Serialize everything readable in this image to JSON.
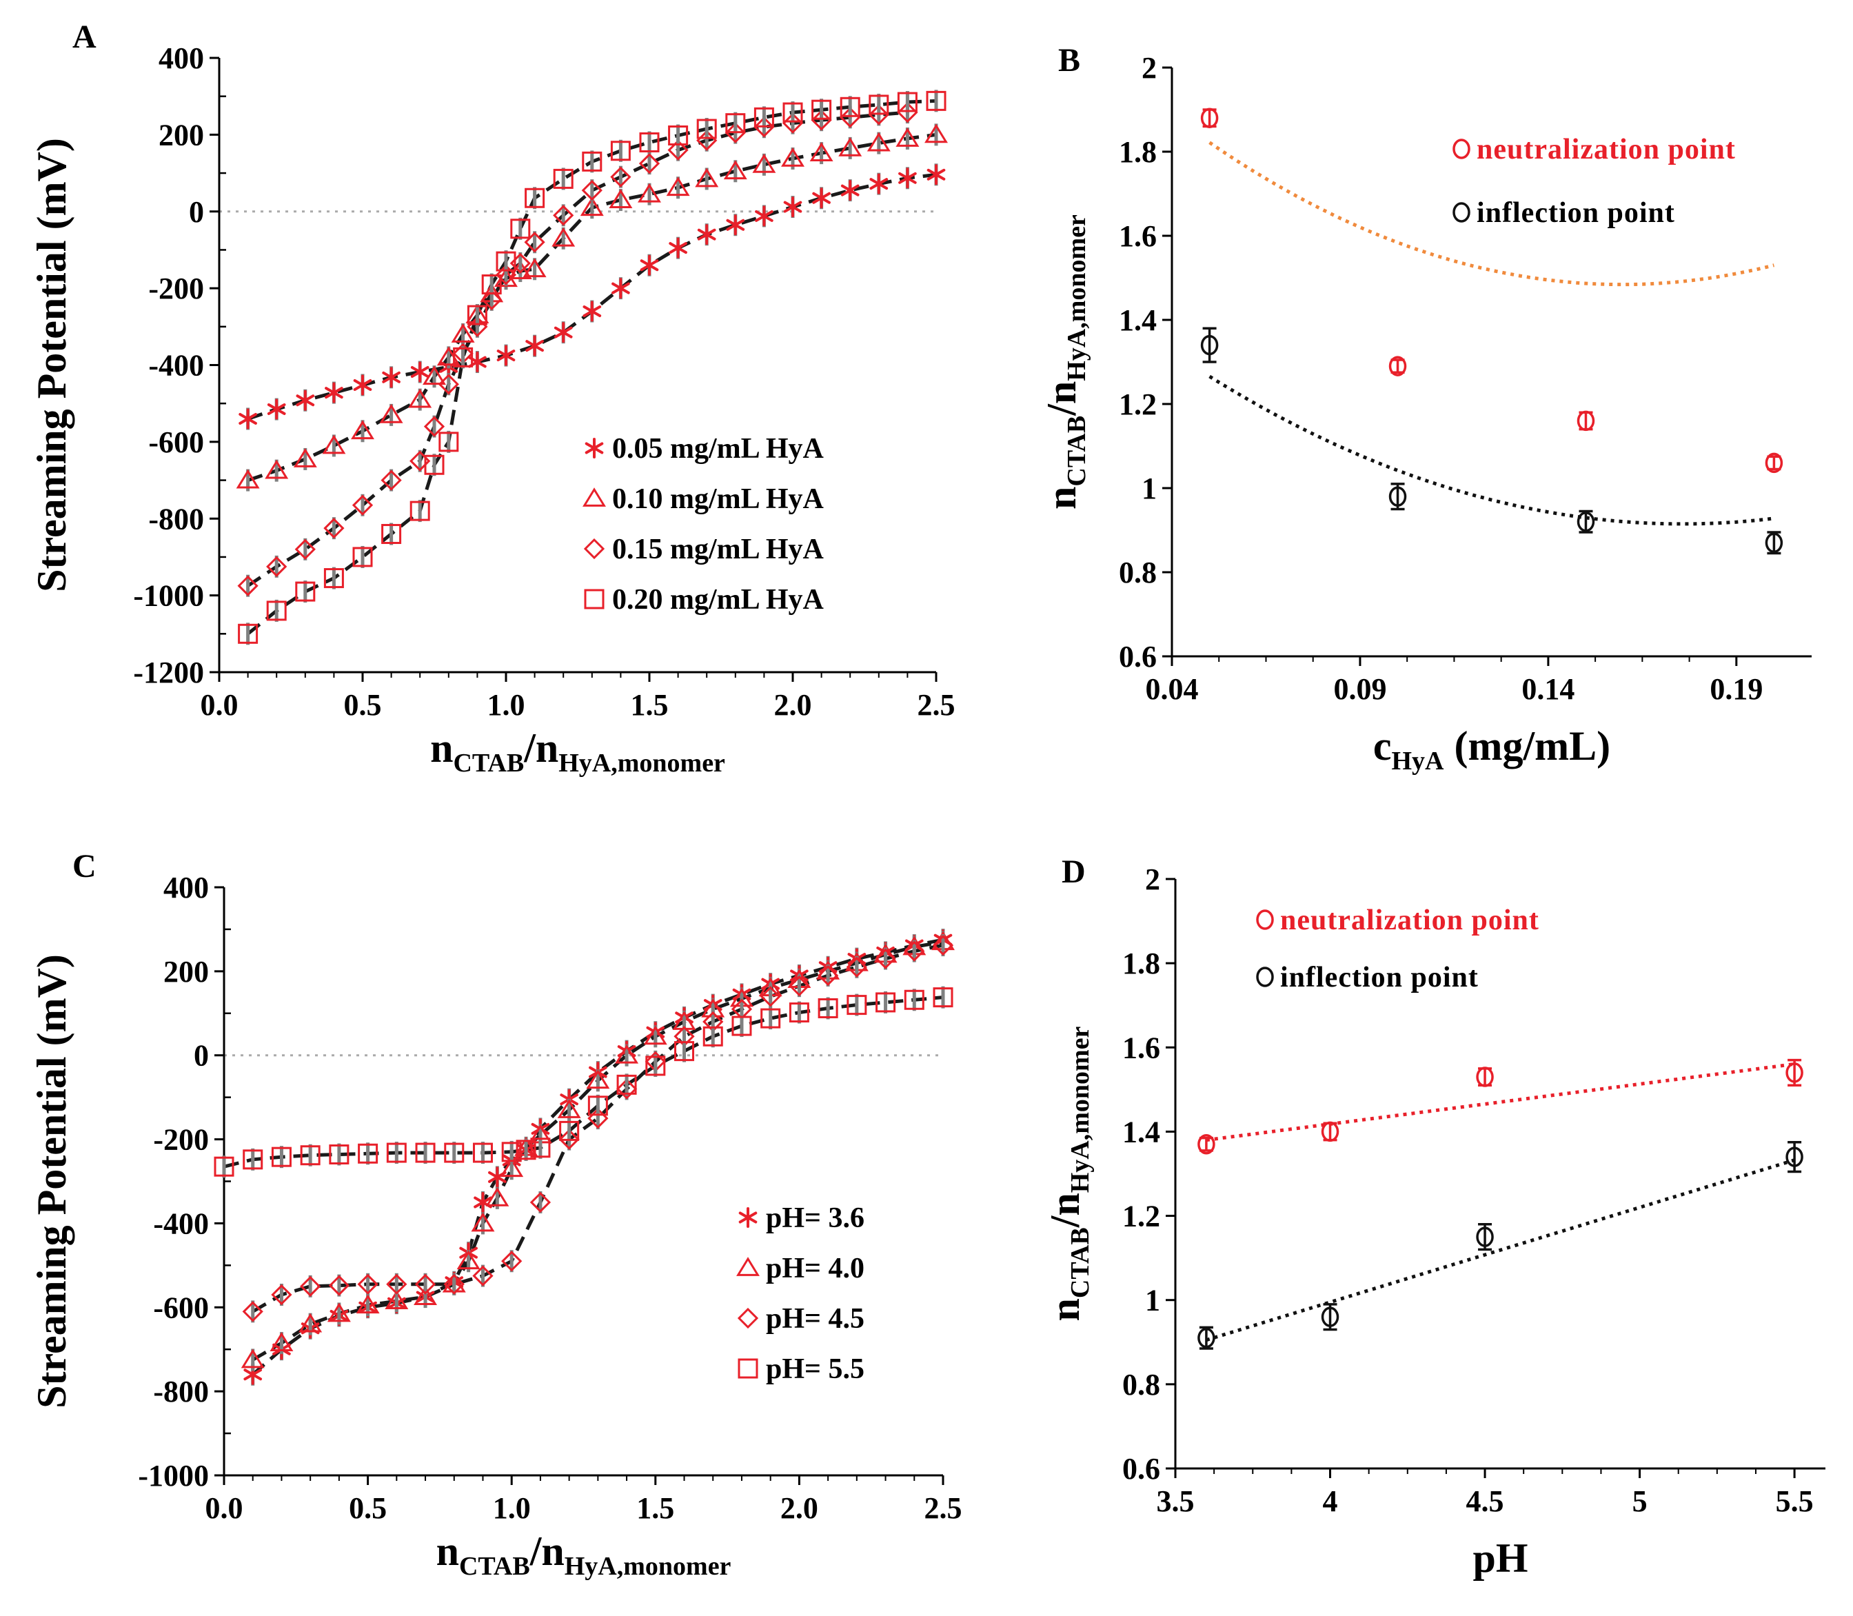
{
  "figure": {
    "panels": [
      "A",
      "B",
      "C",
      "D"
    ]
  },
  "colors": {
    "red": "#e8202a",
    "black": "#111111",
    "orange": "#f08a3c",
    "fit": "#1a1a1a",
    "zero": "#aaaaaa",
    "errbar": "#808080"
  },
  "chart_data": [
    {
      "panel": "A",
      "type": "scatter",
      "ylabel": "Streaming Potential (mV)",
      "xlabel_main": "n",
      "xlabel_sub1": "CTAB",
      "xlabel_mid": "/n",
      "xlabel_sub2": "HyA,monomer",
      "xlim": [
        0,
        2.5
      ],
      "ylim": [
        -1200,
        400
      ],
      "xticks": [
        "0.0",
        "0.5",
        "1.0",
        "1.5",
        "2.0",
        "2.5"
      ],
      "yticks": [
        "400",
        "200",
        "0",
        "-200",
        "-400",
        "-600",
        "-800",
        "-1000",
        "-1200"
      ],
      "series": [
        {
          "name": "0.05 mg/mL HyA",
          "marker": "asterisk",
          "x": [
            0.1,
            0.2,
            0.3,
            0.4,
            0.5,
            0.6,
            0.7,
            0.8,
            0.9,
            1.0,
            1.1,
            1.2,
            1.3,
            1.4,
            1.5,
            1.6,
            1.7,
            1.8,
            1.9,
            2.0,
            2.1,
            2.2,
            2.3,
            2.4,
            2.5
          ],
          "y": [
            -540,
            -515,
            -492,
            -472,
            -452,
            -432,
            -418,
            -405,
            -392,
            -375,
            -350,
            -315,
            -260,
            -200,
            -140,
            -95,
            -60,
            -35,
            -12,
            12,
            35,
            55,
            72,
            87,
            96
          ]
        },
        {
          "name": "0.10 mg/mL HyA",
          "marker": "triangle",
          "x": [
            0.1,
            0.2,
            0.3,
            0.4,
            0.5,
            0.6,
            0.7,
            0.75,
            0.8,
            0.85,
            0.9,
            0.95,
            1.0,
            1.05,
            1.1,
            1.2,
            1.3,
            1.4,
            1.5,
            1.6,
            1.7,
            1.8,
            1.9,
            2.0,
            2.1,
            2.2,
            2.3,
            2.4,
            2.5
          ],
          "y": [
            -700,
            -675,
            -645,
            -610,
            -572,
            -530,
            -490,
            -430,
            -380,
            -320,
            -270,
            -215,
            -175,
            -155,
            -150,
            -70,
            10,
            30,
            45,
            62,
            85,
            105,
            122,
            138,
            152,
            165,
            178,
            190,
            200
          ]
        },
        {
          "name": "0.15 mg/mL HyA",
          "marker": "diamond",
          "x": [
            0.1,
            0.2,
            0.3,
            0.4,
            0.5,
            0.6,
            0.7,
            0.75,
            0.8,
            0.85,
            0.9,
            0.95,
            1.0,
            1.05,
            1.1,
            1.2,
            1.3,
            1.4,
            1.5,
            1.6,
            1.7,
            1.8,
            1.9,
            2.0,
            2.1,
            2.2,
            2.3,
            2.4
          ],
          "y": [
            -975,
            -925,
            -880,
            -825,
            -765,
            -700,
            -650,
            -560,
            -450,
            -370,
            -300,
            -230,
            -165,
            -135,
            -80,
            -10,
            55,
            90,
            125,
            160,
            185,
            205,
            220,
            230,
            238,
            245,
            252,
            258
          ]
        },
        {
          "name": "0.20 mg/mL HyA",
          "marker": "square",
          "x": [
            0.1,
            0.2,
            0.3,
            0.4,
            0.5,
            0.6,
            0.7,
            0.75,
            0.8,
            0.85,
            0.9,
            0.95,
            1.0,
            1.05,
            1.1,
            1.2,
            1.3,
            1.4,
            1.5,
            1.6,
            1.7,
            1.8,
            1.9,
            2.0,
            2.1,
            2.2,
            2.3,
            2.4,
            2.5
          ],
          "y": [
            -1100,
            -1040,
            -990,
            -955,
            -900,
            -840,
            -780,
            -660,
            -600,
            -380,
            -270,
            -190,
            -130,
            -45,
            35,
            85,
            130,
            158,
            180,
            198,
            215,
            230,
            245,
            258,
            265,
            272,
            278,
            285,
            288
          ]
        }
      ]
    },
    {
      "panel": "B",
      "type": "scatter",
      "xlabel_main": "c",
      "xlabel_sub": "HyA",
      "xlabel_rest": " (mg/mL)",
      "ylabel_main": "n",
      "ylabel_sub1": "CTAB",
      "ylabel_mid": "/n",
      "ylabel_sub2": "HyA,monomer",
      "xlim": [
        0.04,
        0.21
      ],
      "ylim": [
        0.6,
        2.0
      ],
      "xticks": [
        "0.04",
        "0.09",
        "0.14",
        "0.19"
      ],
      "yticks": [
        "2",
        "1.8",
        "1.6",
        "1.4",
        "1.2",
        "1",
        "0.8",
        "0.6"
      ],
      "series": [
        {
          "name": "neutralization point",
          "x": [
            0.05,
            0.1,
            0.15,
            0.2
          ],
          "y": [
            1.88,
            1.29,
            1.16,
            1.06
          ],
          "err": [
            0.02,
            0.015,
            0.02,
            0.015
          ]
        },
        {
          "name": "inflection point",
          "x": [
            0.05,
            0.1,
            0.15,
            0.2
          ],
          "y": [
            1.34,
            0.98,
            0.92,
            0.87
          ],
          "err": [
            0.04,
            0.03,
            0.025,
            0.025
          ]
        }
      ]
    },
    {
      "panel": "C",
      "type": "scatter",
      "ylabel": "Streaming Potential (mV)",
      "xlabel_main": "n",
      "xlabel_sub1": "CTAB",
      "xlabel_mid": "/n",
      "xlabel_sub2": "HyA,monomer",
      "xlim": [
        0,
        2.5
      ],
      "ylim": [
        -1000,
        400
      ],
      "xticks": [
        "0.0",
        "0.5",
        "1.0",
        "1.5",
        "2.0",
        "2.5"
      ],
      "yticks": [
        "400",
        "200",
        "0",
        "-200",
        "-400",
        "-600",
        "-800",
        "-1000"
      ],
      "series": [
        {
          "name": "pH= 3.6",
          "marker": "asterisk",
          "x": [
            0.1,
            0.2,
            0.3,
            0.4,
            0.5,
            0.6,
            0.7,
            0.8,
            0.85,
            0.9,
            0.95,
            1.0,
            1.05,
            1.1,
            1.2,
            1.3,
            1.4,
            1.5,
            1.6,
            1.7,
            1.8,
            1.9,
            2.0,
            2.1,
            2.2,
            2.3,
            2.4,
            2.5
          ],
          "y": [
            -760,
            -700,
            -650,
            -620,
            -600,
            -590,
            -575,
            -540,
            -470,
            -350,
            -290,
            -250,
            -225,
            -175,
            -105,
            -40,
            10,
            55,
            90,
            120,
            145,
            170,
            190,
            210,
            230,
            245,
            262,
            275
          ]
        },
        {
          "name": "pH= 4.0",
          "marker": "triangle",
          "x": [
            0.1,
            0.2,
            0.3,
            0.4,
            0.5,
            0.6,
            0.7,
            0.8,
            0.85,
            0.9,
            0.95,
            1.0,
            1.05,
            1.1,
            1.2,
            1.3,
            1.4,
            1.5,
            1.6,
            1.7,
            1.8,
            1.9,
            2.0,
            2.1,
            2.2,
            2.3,
            2.4,
            2.5
          ],
          "y": [
            -725,
            -685,
            -640,
            -615,
            -595,
            -585,
            -575,
            -545,
            -490,
            -400,
            -340,
            -270,
            -220,
            -190,
            -130,
            -60,
            0,
            45,
            80,
            110,
            135,
            160,
            180,
            200,
            220,
            240,
            258,
            270
          ]
        },
        {
          "name": "pH= 4.5",
          "marker": "diamond",
          "x": [
            0.1,
            0.2,
            0.3,
            0.4,
            0.5,
            0.6,
            0.7,
            0.8,
            0.9,
            1.0,
            1.1,
            1.2,
            1.3,
            1.4,
            1.5,
            1.6,
            1.7,
            1.8,
            1.9,
            2.0,
            2.1,
            2.2,
            2.3,
            2.4,
            2.5
          ],
          "y": [
            -610,
            -570,
            -550,
            -548,
            -545,
            -545,
            -545,
            -545,
            -525,
            -490,
            -350,
            -200,
            -150,
            -80,
            -15,
            45,
            80,
            110,
            140,
            165,
            190,
            210,
            230,
            248,
            262
          ]
        },
        {
          "name": "pH= 5.5",
          "marker": "square",
          "x": [
            0.0,
            0.1,
            0.2,
            0.3,
            0.4,
            0.5,
            0.6,
            0.7,
            0.8,
            0.9,
            1.0,
            1.05,
            1.1,
            1.2,
            1.3,
            1.4,
            1.5,
            1.6,
            1.7,
            1.8,
            1.9,
            2.0,
            2.1,
            2.2,
            2.3,
            2.4,
            2.5
          ],
          "y": [
            -265,
            -248,
            -242,
            -238,
            -236,
            -234,
            -232,
            -232,
            -232,
            -232,
            -230,
            -225,
            -220,
            -180,
            -120,
            -70,
            -25,
            10,
            45,
            70,
            88,
            102,
            112,
            120,
            126,
            132,
            138
          ]
        }
      ]
    },
    {
      "panel": "D",
      "type": "scatter",
      "xlabel": "pH",
      "ylabel_main": "n",
      "ylabel_sub1": "CTAB",
      "ylabel_mid": "/n",
      "ylabel_sub2": "HyA,monomer",
      "xlim": [
        3.5,
        5.6
      ],
      "ylim": [
        0.6,
        2.0
      ],
      "xticks": [
        "3.5",
        "4",
        "4.5",
        "5",
        "5.5"
      ],
      "yticks": [
        "2",
        "1.8",
        "1.6",
        "1.4",
        "1.2",
        "1",
        "0.8",
        "0.6"
      ],
      "series": [
        {
          "name": "neutralization point",
          "x": [
            3.6,
            4.0,
            4.5,
            5.5
          ],
          "y": [
            1.37,
            1.4,
            1.53,
            1.54
          ],
          "err": [
            0.015,
            0.02,
            0.02,
            0.03
          ]
        },
        {
          "name": "inflection point",
          "x": [
            3.6,
            4.0,
            4.5,
            5.5
          ],
          "y": [
            0.91,
            0.96,
            1.15,
            1.34
          ],
          "err": [
            0.025,
            0.03,
            0.03,
            0.035
          ]
        }
      ]
    }
  ]
}
